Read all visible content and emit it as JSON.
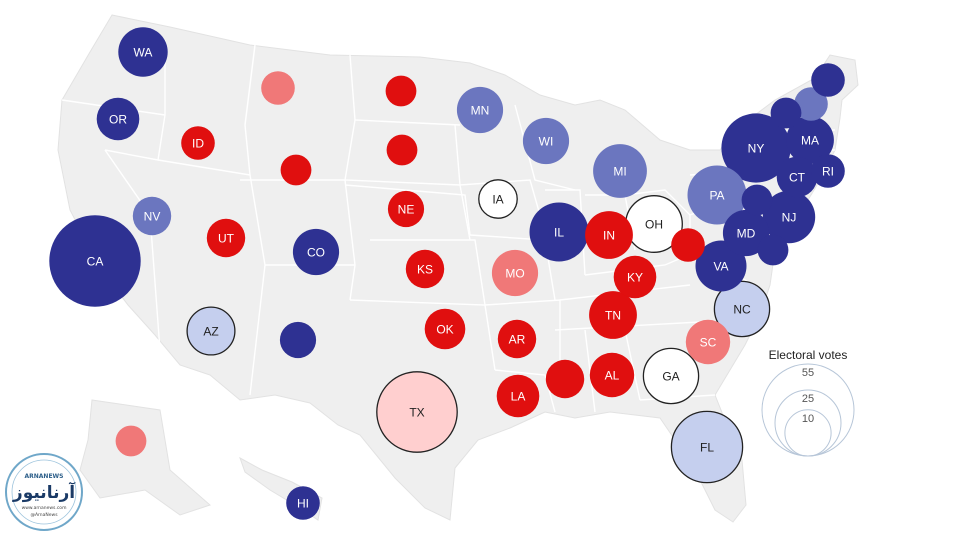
{
  "colors": {
    "solid_dem": "#2e3192",
    "lean_dem": "#6b76bf",
    "tilt_dem": "#c5cfee",
    "tossup": "#ffffff",
    "tilt_rep": "#ffcfcf",
    "lean_rep": "#f07878",
    "solid_rep": "#e00f0f",
    "land": "#efefef",
    "border": "#ffffff"
  },
  "states": [
    {
      "abbr": "WA",
      "label": "WA",
      "ev": 12,
      "rating": "solid_dem"
    },
    {
      "abbr": "OR",
      "label": "OR",
      "ev": 8,
      "rating": "solid_dem"
    },
    {
      "abbr": "CA",
      "label": "CA",
      "ev": 54,
      "rating": "solid_dem"
    },
    {
      "abbr": "NV",
      "label": "NV",
      "ev": 6,
      "rating": "lean_dem"
    },
    {
      "abbr": "ID",
      "label": "ID",
      "ev": 4,
      "rating": "solid_rep"
    },
    {
      "abbr": "MT",
      "label": "",
      "ev": 4,
      "rating": "lean_rep"
    },
    {
      "abbr": "WY",
      "label": "",
      "ev": 3,
      "rating": "solid_rep"
    },
    {
      "abbr": "UT",
      "label": "UT",
      "ev": 6,
      "rating": "solid_rep"
    },
    {
      "abbr": "AZ",
      "label": "AZ",
      "ev": 11,
      "rating": "tilt_dem"
    },
    {
      "abbr": "CO",
      "label": "CO",
      "ev": 10,
      "rating": "solid_dem"
    },
    {
      "abbr": "NM",
      "label": "",
      "ev": 5,
      "rating": "solid_dem"
    },
    {
      "abbr": "ND",
      "label": "",
      "ev": 3,
      "rating": "solid_rep"
    },
    {
      "abbr": "SD",
      "label": "",
      "ev": 3,
      "rating": "solid_rep"
    },
    {
      "abbr": "NE",
      "label": "NE",
      "ev": 5,
      "rating": "solid_rep"
    },
    {
      "abbr": "KS",
      "label": "KS",
      "ev": 6,
      "rating": "solid_rep"
    },
    {
      "abbr": "OK",
      "label": "OK",
      "ev": 7,
      "rating": "solid_rep"
    },
    {
      "abbr": "TX",
      "label": "TX",
      "ev": 40,
      "rating": "tilt_rep"
    },
    {
      "abbr": "MN",
      "label": "MN",
      "ev": 10,
      "rating": "lean_dem"
    },
    {
      "abbr": "IA",
      "label": "IA",
      "ev": 6,
      "rating": "tossup"
    },
    {
      "abbr": "MO",
      "label": "MO",
      "ev": 10,
      "rating": "lean_rep"
    },
    {
      "abbr": "AR",
      "label": "AR",
      "ev": 6,
      "rating": "solid_rep"
    },
    {
      "abbr": "LA",
      "label": "LA",
      "ev": 8,
      "rating": "solid_rep"
    },
    {
      "abbr": "WI",
      "label": "WI",
      "ev": 10,
      "rating": "lean_dem"
    },
    {
      "abbr": "IL",
      "label": "IL",
      "ev": 19,
      "rating": "solid_dem"
    },
    {
      "abbr": "MI",
      "label": "MI",
      "ev": 15,
      "rating": "lean_dem"
    },
    {
      "abbr": "IN",
      "label": "IN",
      "ev": 11,
      "rating": "solid_rep"
    },
    {
      "abbr": "OH",
      "label": "OH",
      "ev": 17,
      "rating": "tossup"
    },
    {
      "abbr": "KY",
      "label": "KY",
      "ev": 8,
      "rating": "solid_rep"
    },
    {
      "abbr": "TN",
      "label": "TN",
      "ev": 11,
      "rating": "solid_rep"
    },
    {
      "abbr": "MS",
      "label": "",
      "ev": 6,
      "rating": "solid_rep"
    },
    {
      "abbr": "AL",
      "label": "AL",
      "ev": 9,
      "rating": "solid_rep"
    },
    {
      "abbr": "GA",
      "label": "GA",
      "ev": 16,
      "rating": "tossup"
    },
    {
      "abbr": "FL",
      "label": "FL",
      "ev": 30,
      "rating": "tilt_dem"
    },
    {
      "abbr": "SC",
      "label": "SC",
      "ev": 9,
      "rating": "lean_rep"
    },
    {
      "abbr": "NC",
      "label": "NC",
      "ev": 16,
      "rating": "tilt_dem"
    },
    {
      "abbr": "VA",
      "label": "VA",
      "ev": 13,
      "rating": "solid_dem"
    },
    {
      "abbr": "WV",
      "label": "",
      "ev": 4,
      "rating": "solid_rep"
    },
    {
      "abbr": "PA",
      "label": "PA",
      "ev": 19,
      "rating": "lean_dem"
    },
    {
      "abbr": "NY",
      "label": "NY",
      "ev": 28,
      "rating": "solid_dem"
    },
    {
      "abbr": "MD",
      "label": "MD",
      "ev": 10,
      "rating": "solid_dem"
    },
    {
      "abbr": "DE",
      "label": "",
      "ev": 3,
      "rating": "solid_dem"
    },
    {
      "abbr": "DC",
      "label": "",
      "ev": 3,
      "rating": "solid_dem"
    },
    {
      "abbr": "NJ",
      "label": "NJ",
      "ev": 14,
      "rating": "solid_dem"
    },
    {
      "abbr": "CT",
      "label": "CT",
      "ev": 7,
      "rating": "solid_dem"
    },
    {
      "abbr": "RI",
      "label": "RI",
      "ev": 4,
      "rating": "solid_dem"
    },
    {
      "abbr": "MA",
      "label": "MA",
      "ev": 11,
      "rating": "solid_dem"
    },
    {
      "abbr": "VT",
      "label": "",
      "ev": 3,
      "rating": "solid_dem"
    },
    {
      "abbr": "NH",
      "label": "",
      "ev": 4,
      "rating": "lean_dem"
    },
    {
      "abbr": "ME",
      "label": "",
      "ev": 4,
      "rating": "solid_dem"
    },
    {
      "abbr": "AK",
      "label": "",
      "ev": 3,
      "rating": "lean_rep"
    },
    {
      "abbr": "HI",
      "label": "HI",
      "ev": 4,
      "rating": "solid_dem"
    }
  ],
  "legend": {
    "title": "Electoral votes",
    "values": [
      55,
      25,
      10
    ]
  },
  "watermark": {
    "name": "ARNANEWS",
    "script": "آرنانیوز",
    "line1": "www.arnanews.com",
    "line2": "@ArnaNews"
  }
}
